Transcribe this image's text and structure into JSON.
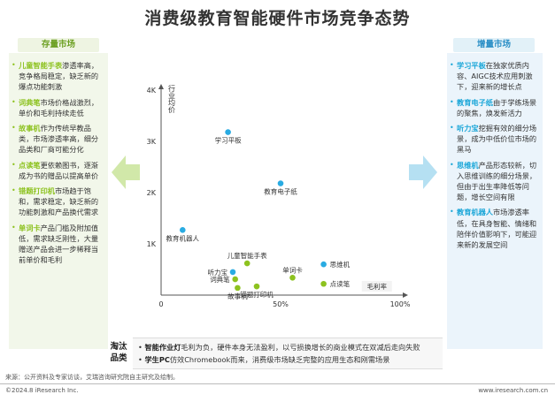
{
  "title": "消费级教育智能硬件市场竞争态势",
  "left_panel": {
    "heading": "存量市场",
    "items": [
      {
        "name": "儿童智能手表",
        "text": "渗透率高，竞争格局稳定，缺乏新的爆点功能刺激"
      },
      {
        "name": "词典笔",
        "text": "市场价格战激烈，单价和毛利持续走低"
      },
      {
        "name": "故事机",
        "text": "作为传统早教品类，市场渗透率高，细分品类和厂商可能分化"
      },
      {
        "name": "点读笔",
        "text": "更依赖图书，逐渐成为书的赠品以提高单价"
      },
      {
        "name": "错题打印机",
        "text": "市场趋于饱和，需求稳定，缺乏新的功能刺激和产品换代需求"
      },
      {
        "name": "单词卡",
        "text": "产品门槛及附加值低，需求缺乏刚性，大量赠送产品会进一步稀释当前单价和毛利"
      }
    ]
  },
  "right_panel": {
    "heading": "增量市场",
    "items": [
      {
        "name": "学习平板",
        "text": "在独家优质内容、AIGC技术应用刺激下，迎来新的增长点"
      },
      {
        "name": "教育电子纸",
        "text": "由于学练场景的聚焦，焕发新活力"
      },
      {
        "name": "听力宝",
        "text": "挖掘有效的细分场景，成为中低价位市场的黑马"
      },
      {
        "name": "思维机",
        "text": "产品形态较新，切入思维训练的细分场景，但由于出生率降低等问题，增长空间有限"
      },
      {
        "name": "教育机器人",
        "text": "市场渗透率低，在具身智能、情绪和陪伴价值影响下，可能迎来新的发展空间"
      }
    ]
  },
  "chart_data": {
    "type": "scatter",
    "title": "",
    "xlabel": "毛利率",
    "ylabel": "行业均价",
    "xlim": [
      0,
      100
    ],
    "ylim": [
      0,
      4000
    ],
    "x_ticks": [
      {
        "value": 0,
        "label": "0"
      },
      {
        "value": 50,
        "label": "50%"
      },
      {
        "value": 100,
        "label": "100%"
      }
    ],
    "y_ticks": [
      {
        "value": 1000,
        "label": "1K"
      },
      {
        "value": 2000,
        "label": "2K"
      },
      {
        "value": 3000,
        "label": "3K"
      },
      {
        "value": 4000,
        "label": "4K"
      }
    ],
    "colors": {
      "growth": "#29abe2",
      "stock": "#8dc21f"
    },
    "points": [
      {
        "label": "学习平板",
        "x": 28,
        "y": 3180,
        "group": "growth",
        "label_pos": "below"
      },
      {
        "label": "教育电子纸",
        "x": 50,
        "y": 2180,
        "group": "growth",
        "label_pos": "below"
      },
      {
        "label": "教育机器人",
        "x": 9,
        "y": 1270,
        "group": "growth",
        "label_pos": "below"
      },
      {
        "label": "思维机",
        "x": 68,
        "y": 600,
        "group": "growth",
        "label_pos": "right"
      },
      {
        "label": "听力宝",
        "x": 30,
        "y": 450,
        "group": "growth",
        "label_pos": "left"
      },
      {
        "label": "儿童智能手表",
        "x": 36,
        "y": 620,
        "group": "stock",
        "label_pos": "above"
      },
      {
        "label": "词典笔",
        "x": 31,
        "y": 310,
        "group": "stock",
        "label_pos": "left"
      },
      {
        "label": "故事机",
        "x": 32,
        "y": 140,
        "group": "stock",
        "label_pos": "below"
      },
      {
        "label": "错题打印机",
        "x": 40,
        "y": 170,
        "group": "stock",
        "label_pos": "below"
      },
      {
        "label": "单词卡",
        "x": 55,
        "y": 340,
        "group": "stock",
        "label_pos": "above"
      },
      {
        "label": "点读笔",
        "x": 68,
        "y": 220,
        "group": "stock",
        "label_pos": "right"
      }
    ]
  },
  "eliminated": {
    "label": "淘汰品类",
    "items": [
      {
        "name": "智能作业灯",
        "text": "毛利为负，硬件本身无法盈利，以亏损换增长的商业模式在双减后走向失败"
      },
      {
        "name": "学生PC",
        "text": "仿效Chromebook而来，消费级市场缺乏完整的应用生态和刚需场景"
      }
    ]
  },
  "footer": {
    "source": "来源：公开资料及专家访谈，艾瑞咨询研究院自主研究及绘制。",
    "copyright": "©2024.8 iResearch Inc.",
    "website": "www.iresearch.com.cn"
  }
}
